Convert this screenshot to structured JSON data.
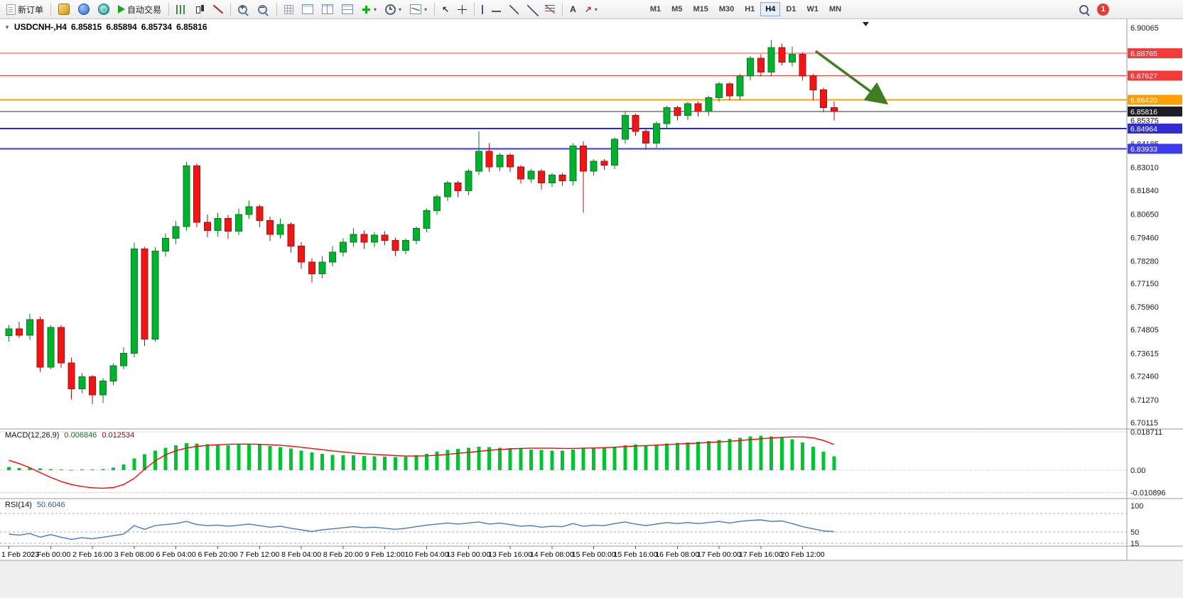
{
  "toolbar": {
    "new_order_label": "新订单",
    "auto_trading_label": "自动交易",
    "text_tool_label": "A",
    "timeframes": [
      "M1",
      "M5",
      "M15",
      "M30",
      "H1",
      "H4",
      "D1",
      "W1",
      "MN"
    ],
    "active_timeframe": "H4",
    "notification_count": "1"
  },
  "chart_header": {
    "symbol_period": "USDCNH-,H4",
    "open": "6.85815",
    "high": "6.85894",
    "low": "6.85734",
    "close": "6.85816"
  },
  "indicators": {
    "macd": {
      "name": "MACD(12,26,9)",
      "main_value": "0.006846",
      "signal_value": "0.012534",
      "axis_labels": [
        "0.018711",
        "0.00",
        "-0.010896"
      ],
      "axis_values": [
        0.018711,
        0,
        -0.010896
      ]
    },
    "rsi": {
      "name": "RSI(14)",
      "value": "50.6046",
      "axis_labels": [
        "100",
        "50",
        "15"
      ],
      "axis_values": [
        100,
        50,
        15
      ],
      "levels": [
        85,
        50,
        15
      ]
    }
  },
  "chart_data": {
    "type": "candlestick",
    "symbol": "USDCNH-",
    "timeframe": "H4",
    "price_axis_labels": [
      "6.90065",
      "6.85375",
      "6.84185",
      "6.83010",
      "6.81840",
      "6.80650",
      "6.79460",
      "6.78280",
      "6.77150",
      "6.75960",
      "6.74805",
      "6.73615",
      "6.72460",
      "6.71270",
      "6.70115"
    ],
    "price_axis_values": [
      6.90065,
      6.85375,
      6.84185,
      6.8301,
      6.8184,
      6.8065,
      6.7946,
      6.7828,
      6.7715,
      6.7596,
      6.74805,
      6.73615,
      6.7246,
      6.7127,
      6.70115
    ],
    "hlines": [
      {
        "price": 6.88765,
        "label": "6.88765",
        "line_color": "#ff3838",
        "line_width": 1,
        "tag_bg": "#f43b3b"
      },
      {
        "price": 6.87627,
        "label": "6.87627",
        "line_color": "#ff3838",
        "line_width": 1,
        "tag_bg": "#f43b3b"
      },
      {
        "price": 6.8642,
        "label": "6.86420",
        "line_color": "#ffa200",
        "line_width": 2,
        "tag_bg": "#ff9e00"
      },
      {
        "price": 6.85816,
        "label": "6.85816",
        "line_color": "#2c2f36",
        "line_width": 1,
        "tag_bg": "#1d1d28"
      },
      {
        "price": 6.84964,
        "label": "6.84964",
        "line_color": "#2929cc",
        "line_width": 2,
        "tag_bg": "#2f2fd0"
      },
      {
        "price": 6.83933,
        "label": "6.83933",
        "line_color": "#3333ff",
        "line_width": 2,
        "tag_bg": "#3b3bf0"
      }
    ],
    "time_labels": [
      "1 Feb 2023",
      "2 Feb 00:00",
      "2 Feb 16:00",
      "3 Feb 08:00",
      "6 Feb 04:00",
      "6 Feb 20:00",
      "7 Feb 12:00",
      "8 Feb 04:00",
      "8 Feb 20:00",
      "9 Feb 12:00",
      "10 Feb 04:00",
      "13 Feb 00:00",
      "13 Feb 16:00",
      "14 Feb 08:00",
      "15 Feb 00:00",
      "15 Feb 16:00",
      "16 Feb 08:00",
      "17 Feb 00:00",
      "17 Feb 16:00",
      "20 Feb 12:00"
    ],
    "time_label_step": 4,
    "candles_ohlc": [
      [
        6.745,
        6.7505,
        6.742,
        6.7485
      ],
      [
        6.7485,
        6.752,
        6.7438,
        6.7452
      ],
      [
        6.7452,
        6.756,
        6.743,
        6.7532
      ],
      [
        6.7532,
        6.7545,
        6.7268,
        6.7292
      ],
      [
        6.7292,
        6.7502,
        6.728,
        6.7492
      ],
      [
        6.7492,
        6.7505,
        6.7288,
        6.7312
      ],
      [
        6.7312,
        6.734,
        6.7128,
        6.7182
      ],
      [
        6.7182,
        6.7262,
        6.716,
        6.7242
      ],
      [
        6.7242,
        6.7252,
        6.7105,
        6.7152
      ],
      [
        6.7152,
        6.7235,
        6.711,
        6.7222
      ],
      [
        6.7222,
        6.731,
        6.72,
        6.7298
      ],
      [
        6.7298,
        6.7392,
        6.728,
        6.7362
      ],
      [
        6.7362,
        6.792,
        6.734,
        6.7888
      ],
      [
        6.7888,
        6.79,
        6.7398,
        6.7432
      ],
      [
        6.7432,
        6.7898,
        6.742,
        6.7878
      ],
      [
        6.7878,
        6.7968,
        6.785,
        6.7942
      ],
      [
        6.7942,
        6.803,
        6.7912,
        6.8002
      ],
      [
        6.8002,
        6.8328,
        6.798,
        6.8308
      ],
      [
        6.8308,
        6.832,
        6.7998,
        6.8022
      ],
      [
        6.8022,
        6.8062,
        6.7948,
        6.7982
      ],
      [
        6.7982,
        6.8072,
        6.7952,
        6.8042
      ],
      [
        6.8042,
        6.806,
        6.7938,
        6.7978
      ],
      [
        6.7978,
        6.8092,
        6.7958,
        6.8062
      ],
      [
        6.8062,
        6.8132,
        6.804,
        6.8102
      ],
      [
        6.8102,
        6.8112,
        6.7998,
        6.8032
      ],
      [
        6.8032,
        6.8052,
        6.7928,
        6.7962
      ],
      [
        6.7962,
        6.8042,
        6.794,
        6.8012
      ],
      [
        6.8012,
        6.8022,
        6.7868,
        6.7902
      ],
      [
        6.7902,
        6.7922,
        6.7788,
        6.7822
      ],
      [
        6.7822,
        6.7842,
        6.7718,
        6.7762
      ],
      [
        6.7762,
        6.7852,
        6.774,
        6.7822
      ],
      [
        6.7822,
        6.7902,
        6.78,
        6.7872
      ],
      [
        6.7872,
        6.7942,
        6.785,
        6.7922
      ],
      [
        6.7922,
        6.7992,
        6.79,
        6.7962
      ],
      [
        6.7962,
        6.7982,
        6.7888,
        6.7922
      ],
      [
        6.7922,
        6.7972,
        6.7898,
        6.7958
      ],
      [
        6.7958,
        6.7978,
        6.7908,
        6.7932
      ],
      [
        6.7932,
        6.7945,
        6.7852,
        6.7882
      ],
      [
        6.7882,
        6.7942,
        6.7862,
        6.7932
      ],
      [
        6.7932,
        6.8002,
        6.7912,
        6.7992
      ],
      [
        6.7992,
        6.8092,
        6.7972,
        6.8082
      ],
      [
        6.8082,
        6.8162,
        6.806,
        6.8152
      ],
      [
        6.8152,
        6.8232,
        6.813,
        6.8222
      ],
      [
        6.8222,
        6.8232,
        6.815,
        6.8182
      ],
      [
        6.8182,
        6.8292,
        6.816,
        6.8282
      ],
      [
        6.8282,
        6.8482,
        6.8262,
        6.8382
      ],
      [
        6.8382,
        6.8422,
        6.8278,
        6.8302
      ],
      [
        6.8302,
        6.8372,
        6.8282,
        6.8362
      ],
      [
        6.8362,
        6.8372,
        6.8278,
        6.8302
      ],
      [
        6.8302,
        6.8312,
        6.8218,
        6.8242
      ],
      [
        6.8242,
        6.8292,
        6.8222,
        6.8282
      ],
      [
        6.8282,
        6.8292,
        6.8188,
        6.8222
      ],
      [
        6.8222,
        6.8272,
        6.82,
        6.8262
      ],
      [
        6.8262,
        6.8272,
        6.8208,
        6.8232
      ],
      [
        6.8232,
        6.8422,
        6.821,
        6.8408
      ],
      [
        6.8408,
        6.8432,
        6.8072,
        6.8282
      ],
      [
        6.8282,
        6.8342,
        6.826,
        6.8332
      ],
      [
        6.8332,
        6.8342,
        6.8288,
        6.8312
      ],
      [
        6.8312,
        6.8452,
        6.8292,
        6.8442
      ],
      [
        6.8442,
        6.8582,
        6.842,
        6.8562
      ],
      [
        6.8562,
        6.8572,
        6.8458,
        6.8482
      ],
      [
        6.8482,
        6.8492,
        6.8388,
        6.8422
      ],
      [
        6.8422,
        6.8532,
        6.84,
        6.8522
      ],
      [
        6.8522,
        6.8612,
        6.85,
        6.8602
      ],
      [
        6.8602,
        6.8612,
        6.8538,
        6.8562
      ],
      [
        6.8562,
        6.8632,
        6.854,
        6.8622
      ],
      [
        6.8622,
        6.8632,
        6.8558,
        6.8582
      ],
      [
        6.8582,
        6.8662,
        6.856,
        6.8652
      ],
      [
        6.8652,
        6.8732,
        6.863,
        6.8722
      ],
      [
        6.8722,
        6.8732,
        6.8638,
        6.8662
      ],
      [
        6.8662,
        6.8772,
        6.864,
        6.8762
      ],
      [
        6.8762,
        6.8862,
        6.874,
        6.8852
      ],
      [
        6.8852,
        6.8872,
        6.8758,
        6.8782
      ],
      [
        6.8782,
        6.8945,
        6.876,
        6.8905
      ],
      [
        6.8905,
        6.8925,
        6.8815,
        6.8832
      ],
      [
        6.8832,
        6.891,
        6.881,
        6.8872
      ],
      [
        6.8872,
        6.8882,
        6.8738,
        6.8762
      ],
      [
        6.8762,
        6.8772,
        6.8638,
        6.8692
      ],
      [
        6.8692,
        6.8702,
        6.8578,
        6.8602
      ],
      [
        6.8602,
        6.8632,
        6.8538,
        6.8582
      ]
    ],
    "macd": {
      "histogram": [
        0.0015,
        0.001,
        0.0012,
        0.0008,
        0.0005,
        0.0003,
        0.0002,
        0.0004,
        0.0003,
        0.0006,
        0.0012,
        0.0028,
        0.0058,
        0.0078,
        0.0095,
        0.011,
        0.0122,
        0.0132,
        0.013,
        0.0126,
        0.0124,
        0.0121,
        0.0124,
        0.0127,
        0.0124,
        0.0118,
        0.0112,
        0.0105,
        0.0096,
        0.0086,
        0.0079,
        0.0075,
        0.0073,
        0.0072,
        0.007,
        0.0068,
        0.0066,
        0.0064,
        0.0066,
        0.0072,
        0.008,
        0.009,
        0.0099,
        0.0104,
        0.0109,
        0.0114,
        0.0112,
        0.011,
        0.0108,
        0.0104,
        0.01,
        0.0098,
        0.0096,
        0.0095,
        0.01,
        0.0106,
        0.0108,
        0.011,
        0.0115,
        0.0122,
        0.0125,
        0.0122,
        0.0125,
        0.013,
        0.0133,
        0.0136,
        0.0138,
        0.0142,
        0.0148,
        0.0152,
        0.0158,
        0.0164,
        0.0168,
        0.0165,
        0.016,
        0.015,
        0.0135,
        0.0115,
        0.009,
        0.0068
      ],
      "signal": [
        0.0048,
        0.0032,
        0.0012,
        -0.0012,
        -0.0035,
        -0.0055,
        -0.007,
        -0.008,
        -0.0086,
        -0.0088,
        -0.0085,
        -0.007,
        -0.004,
        0.0005,
        0.0045,
        0.0075,
        0.0095,
        0.0108,
        0.0116,
        0.0121,
        0.0124,
        0.0126,
        0.0127,
        0.0127,
        0.0126,
        0.0124,
        0.0121,
        0.0117,
        0.0112,
        0.0106,
        0.01,
        0.0094,
        0.0089,
        0.0084,
        0.008,
        0.0077,
        0.0074,
        0.0071,
        0.0069,
        0.0069,
        0.007,
        0.0073,
        0.0077,
        0.0082,
        0.0087,
        0.0092,
        0.0097,
        0.0101,
        0.0104,
        0.0106,
        0.0107,
        0.0107,
        0.0107,
        0.0106,
        0.0106,
        0.0107,
        0.0108,
        0.011,
        0.0112,
        0.0115,
        0.0118,
        0.012,
        0.0122,
        0.0125,
        0.0127,
        0.013,
        0.0132,
        0.0135,
        0.0138,
        0.0141,
        0.0145,
        0.0149,
        0.0153,
        0.0157,
        0.016,
        0.0162,
        0.0162,
        0.0158,
        0.0145,
        0.0125
      ]
    },
    "rsi": {
      "values": [
        46,
        44,
        47,
        40,
        45,
        40,
        36,
        39,
        37,
        40,
        43,
        46,
        62,
        55,
        62,
        64,
        66,
        70,
        64,
        62,
        63,
        61,
        63,
        65,
        62,
        59,
        61,
        57,
        54,
        51,
        54,
        56,
        58,
        60,
        58,
        59,
        57,
        55,
        57,
        60,
        63,
        65,
        67,
        65,
        67,
        69,
        65,
        67,
        64,
        61,
        62,
        59,
        61,
        60,
        66,
        61,
        63,
        62,
        66,
        69,
        65,
        62,
        65,
        68,
        66,
        68,
        66,
        68,
        70,
        67,
        70,
        72,
        73,
        70,
        71,
        66,
        60,
        56,
        52,
        50.6
      ],
      "range": [
        0,
        100
      ]
    },
    "colors": {
      "up_fill": "#00b22d",
      "up_stroke": "#067d1e",
      "down_fill": "#f01616",
      "down_stroke": "#a80f0f",
      "macd_hist": "#00c431",
      "macd_signal": "#ff0000",
      "rsi_line": "#4878c0",
      "arrow": "#3f7d23"
    }
  }
}
